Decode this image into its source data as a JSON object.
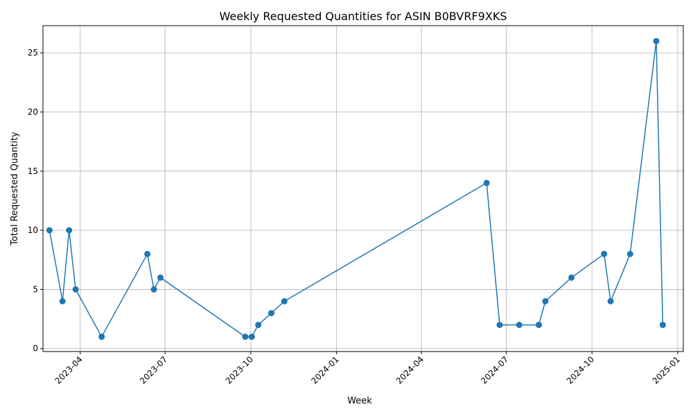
{
  "chart_data": {
    "type": "line",
    "title": "Weekly Requested Quantities for ASIN B0BVRF9XKS",
    "xlabel": "Week",
    "ylabel": "Total Requested Quantity",
    "x_ticks": [
      "2023-04",
      "2023-07",
      "2023-10",
      "2024-01",
      "2024-04",
      "2024-07",
      "2024-10",
      "2025-01"
    ],
    "y_ticks": [
      0,
      5,
      10,
      15,
      20,
      25
    ],
    "xlim": [
      "2023-02-20",
      "2025-01-07"
    ],
    "ylim": [
      -0.25,
      27.3
    ],
    "grid": true,
    "marker": "circle",
    "line_color": "#1f77b4",
    "series": [
      {
        "x": [
          "2023-02-27",
          "2023-03-13",
          "2023-03-20",
          "2023-03-27",
          "2023-04-24",
          "2023-06-12",
          "2023-06-19",
          "2023-06-26",
          "2023-09-25",
          "2023-10-02",
          "2023-10-09",
          "2023-10-23",
          "2023-11-06",
          "2024-06-10",
          "2024-06-24",
          "2024-07-15",
          "2024-08-05",
          "2024-08-12",
          "2024-09-09",
          "2024-10-14",
          "2024-10-21",
          "2024-11-11",
          "2024-12-09",
          "2024-12-16"
        ],
        "y": [
          10,
          4,
          10,
          5,
          1,
          8,
          5,
          6,
          1,
          1,
          2,
          3,
          4,
          14,
          2,
          2,
          2,
          4,
          6,
          8,
          4,
          8,
          26,
          2
        ]
      }
    ]
  }
}
